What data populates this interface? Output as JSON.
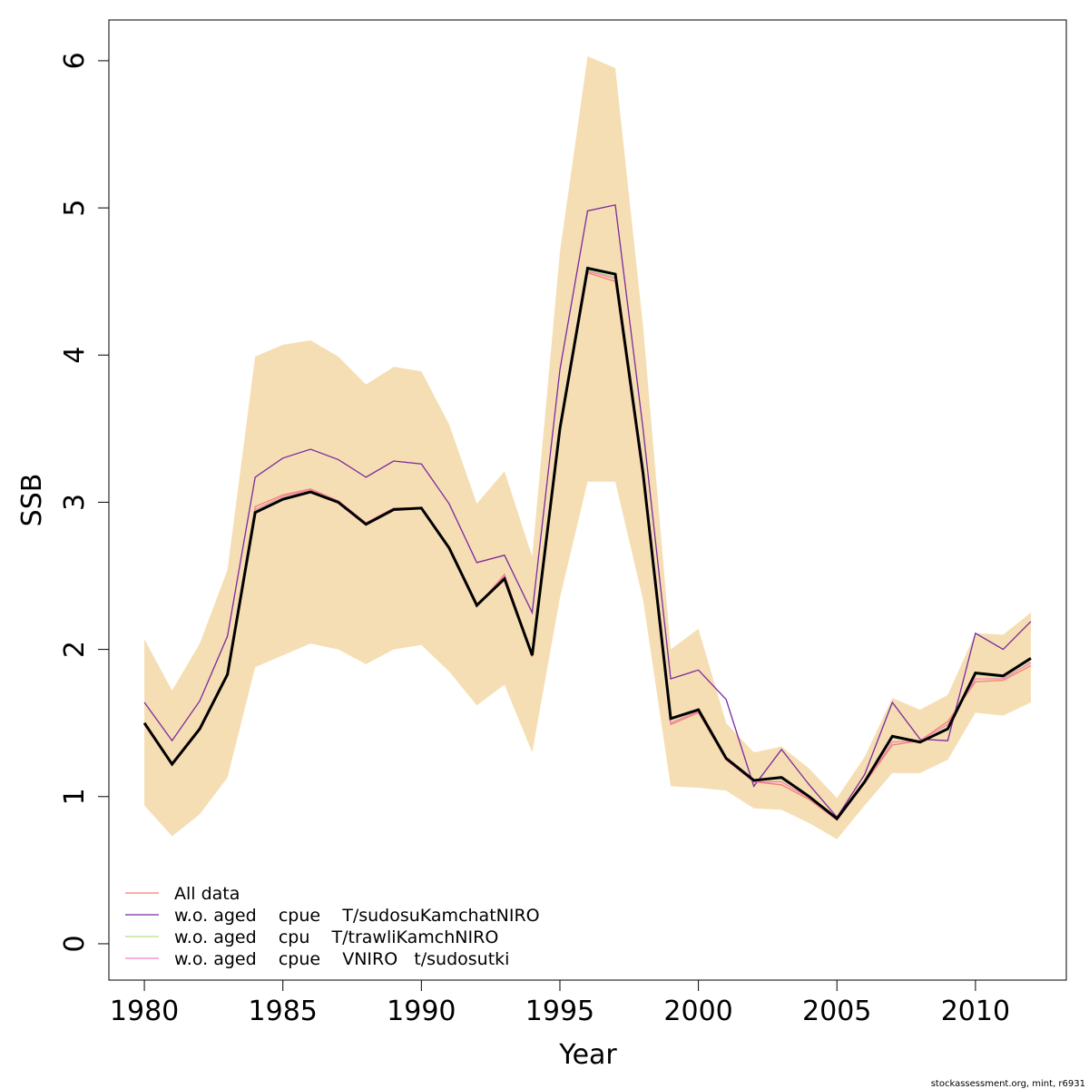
{
  "chart_data": {
    "type": "line",
    "xlabel": "Year",
    "ylabel": "SSB",
    "footer": "stockassessment.org, mint, r6931",
    "x": [
      1980,
      1981,
      1982,
      1983,
      1984,
      1985,
      1986,
      1987,
      1988,
      1989,
      1990,
      1991,
      1992,
      1993,
      1994,
      1995,
      1996,
      1997,
      1998,
      1999,
      2000,
      2001,
      2002,
      2003,
      2004,
      2005,
      2006,
      2007,
      2008,
      2009,
      2010,
      2011,
      2012
    ],
    "xlim": [
      1978.72,
      2013.28
    ],
    "xticks": [
      1980,
      1985,
      1990,
      1995,
      2000,
      2005,
      2010
    ],
    "ylim": [
      -0.247,
      6.277
    ],
    "yticks": [
      0,
      1,
      2,
      3,
      4,
      5,
      6
    ],
    "legend": "bottomleft",
    "band": {
      "color": "#f5deb3",
      "upper": [
        2.07,
        1.72,
        2.04,
        2.54,
        3.99,
        4.07,
        4.1,
        3.99,
        3.8,
        3.92,
        3.89,
        3.53,
        2.99,
        3.21,
        2.63,
        4.7,
        6.03,
        5.95,
        4.2,
        2.0,
        2.14,
        1.5,
        1.3,
        1.34,
        1.19,
        0.99,
        1.27,
        1.67,
        1.59,
        1.69,
        2.11,
        2.1,
        2.25
      ],
      "lower": [
        0.94,
        0.73,
        0.88,
        1.13,
        1.88,
        1.96,
        2.04,
        2.0,
        1.9,
        2.0,
        2.03,
        1.85,
        1.62,
        1.76,
        1.3,
        2.35,
        3.14,
        3.14,
        2.34,
        1.07,
        1.06,
        1.04,
        0.92,
        0.91,
        0.82,
        0.71,
        0.94,
        1.16,
        1.16,
        1.25,
        1.57,
        1.55,
        1.64
      ]
    },
    "estimate": {
      "color": "#000000",
      "values": [
        1.5,
        1.22,
        1.46,
        1.83,
        2.93,
        3.02,
        3.07,
        3.0,
        2.85,
        2.95,
        2.96,
        2.69,
        2.3,
        2.48,
        1.96,
        3.5,
        4.59,
        4.55,
        3.2,
        1.53,
        1.59,
        1.26,
        1.11,
        1.13,
        1.0,
        0.85,
        1.1,
        1.41,
        1.37,
        1.46,
        1.84,
        1.82,
        1.94
      ]
    },
    "series": [
      {
        "name": "All data",
        "color": "#f08070",
        "values": [
          1.49,
          1.23,
          1.47,
          1.84,
          2.97,
          3.05,
          3.09,
          3.01,
          2.86,
          2.96,
          2.96,
          2.69,
          2.29,
          2.51,
          1.95,
          3.48,
          4.56,
          4.5,
          3.16,
          1.49,
          1.57,
          1.25,
          1.1,
          1.08,
          0.98,
          0.84,
          1.09,
          1.35,
          1.38,
          1.51,
          1.78,
          1.79,
          1.89
        ]
      },
      {
        "name": "w.o. aged    cpue    T/sudosuKamchatNIRO",
        "color": "#7b2a9e",
        "values": [
          1.64,
          1.38,
          1.65,
          2.09,
          3.17,
          3.3,
          3.36,
          3.29,
          3.17,
          3.28,
          3.26,
          2.99,
          2.59,
          2.64,
          2.25,
          3.9,
          4.98,
          5.02,
          3.5,
          1.8,
          1.86,
          1.66,
          1.07,
          1.32,
          1.08,
          0.86,
          1.15,
          1.64,
          1.39,
          1.38,
          2.11,
          2.0,
          2.19
        ]
      },
      {
        "name": "w.o. aged    cpu    T/trawliKamchNIRO",
        "color": "#b2df8a",
        "values": [
          1.5,
          1.22,
          1.46,
          1.83,
          2.94,
          3.03,
          3.08,
          3.0,
          2.85,
          2.96,
          2.96,
          2.69,
          2.3,
          2.49,
          1.96,
          3.5,
          4.58,
          4.53,
          3.19,
          1.52,
          1.58,
          1.26,
          1.11,
          1.12,
          1.0,
          0.85,
          1.1,
          1.4,
          1.37,
          1.47,
          1.83,
          1.81,
          1.93
        ]
      },
      {
        "name": "w.o. aged    cpue    VNIRO   t/sudosutki",
        "color": "#f781bf",
        "values": [
          1.49,
          1.23,
          1.46,
          1.84,
          2.95,
          3.04,
          3.08,
          3.01,
          2.86,
          2.96,
          2.96,
          2.69,
          2.29,
          2.5,
          1.95,
          3.49,
          4.57,
          4.52,
          3.18,
          1.5,
          1.58,
          1.25,
          1.1,
          1.1,
          0.99,
          0.84,
          1.09,
          1.37,
          1.38,
          1.49,
          1.8,
          1.8,
          1.91
        ]
      }
    ]
  }
}
